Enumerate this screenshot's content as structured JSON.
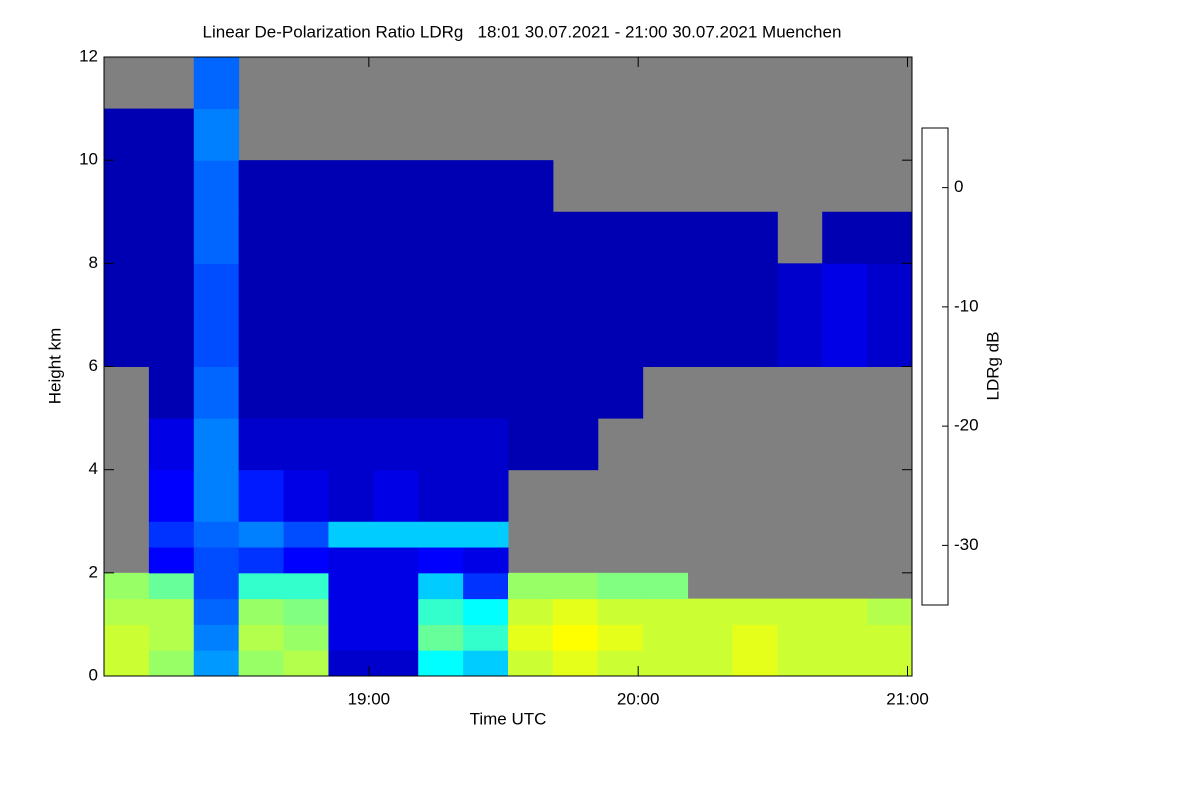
{
  "chart_data": {
    "type": "heatmap",
    "title": "Linear De-Polarization Ratio LDRg   18:01 30.07.2021 - 21:00 30.07.2021 Muenchen",
    "x_label": "Time UTC",
    "y_label": "Height km",
    "colorbar_label": "LDRg dB",
    "colormap": "jet",
    "missing_color": "#808080",
    "xlim": [
      1081,
      1261
    ],
    "xticks": [
      {
        "value": 1140,
        "label": "19:00"
      },
      {
        "value": 1200,
        "label": "20:00"
      },
      {
        "value": 1260,
        "label": "21:00"
      }
    ],
    "ylim": [
      0,
      12
    ],
    "yticks": [
      0,
      2,
      4,
      6,
      8,
      10,
      12
    ],
    "zlim": [
      -35,
      5
    ],
    "zticks": [
      0,
      -10,
      -20,
      -30
    ],
    "x_bins": [
      1081,
      1091,
      1101,
      1111,
      1121,
      1131,
      1141,
      1151,
      1161,
      1171,
      1181,
      1191,
      1201,
      1211,
      1221,
      1231,
      1241,
      1251,
      1261
    ],
    "y_bins": [
      0,
      0.5,
      1,
      1.5,
      2,
      2.5,
      3,
      4,
      5,
      6,
      7,
      8,
      9,
      10,
      11,
      12
    ],
    "z": [
      [
        -12,
        -14,
        -24,
        -14,
        -13,
        -32,
        -32,
        -20,
        -22,
        -12,
        -11,
        -12,
        -12,
        -12,
        -11,
        -12,
        -12,
        -12
      ],
      [
        -12,
        -13,
        -25,
        -13,
        -14,
        -31,
        -31,
        -16,
        -18,
        -11,
        -10,
        -11,
        -12,
        -12,
        -11,
        -12,
        -12,
        -12
      ],
      [
        -13,
        -13,
        -26,
        -14,
        -15,
        -31,
        -31,
        -18,
        -20,
        -12,
        -11,
        -12,
        -12,
        -12,
        -12,
        -12,
        -12,
        -13
      ],
      [
        -14,
        -16,
        -27,
        -18,
        -18,
        -31,
        -31,
        -22,
        -28,
        -14,
        -14,
        -15,
        -15,
        null,
        null,
        null,
        null,
        null
      ],
      [
        null,
        -30,
        -27,
        -28,
        -30,
        -31,
        -31,
        -30,
        -31,
        null,
        null,
        null,
        null,
        null,
        null,
        null,
        null,
        null
      ],
      [
        null,
        -28,
        -26,
        -25,
        -27,
        -22,
        -22,
        -22,
        -22,
        null,
        null,
        null,
        null,
        null,
        null,
        null,
        null,
        null
      ],
      [
        null,
        -30,
        -25,
        -29,
        -31,
        -32,
        -31,
        -32,
        -32,
        null,
        null,
        null,
        null,
        null,
        null,
        null,
        null,
        null
      ],
      [
        null,
        -31,
        -25,
        -32,
        -32,
        -32,
        -32,
        -32,
        -32,
        -33,
        -33,
        null,
        null,
        null,
        null,
        null,
        null,
        null
      ],
      [
        null,
        -33,
        -26,
        -33,
        -33,
        -33,
        -33,
        -33,
        -33,
        -33,
        -33,
        -33,
        null,
        null,
        null,
        null,
        null,
        null
      ],
      [
        -33,
        -33,
        -27,
        -33,
        -33,
        -33,
        -33,
        -33,
        -33,
        -33,
        -33,
        -33,
        -33,
        -33,
        -33,
        -32,
        -31,
        -32
      ],
      [
        -33,
        -33,
        -27,
        -33,
        -33,
        -33,
        -33,
        -33,
        -33,
        -33,
        -33,
        -33,
        -33,
        -33,
        -33,
        -32,
        -31,
        -32
      ],
      [
        -33,
        -33,
        -26,
        -33,
        -33,
        -33,
        -33,
        -33,
        -33,
        -33,
        -33,
        -33,
        -33,
        -33,
        -33,
        null,
        -33,
        -33
      ],
      [
        -33,
        -33,
        -26,
        -33,
        -33,
        -33,
        -33,
        -33,
        -33,
        -33,
        null,
        null,
        null,
        null,
        null,
        null,
        null,
        null
      ],
      [
        -33,
        -33,
        -25,
        null,
        null,
        null,
        null,
        null,
        null,
        null,
        null,
        null,
        null,
        null,
        null,
        null,
        null,
        null
      ],
      [
        null,
        null,
        -26,
        null,
        null,
        null,
        null,
        null,
        null,
        null,
        null,
        null,
        null,
        null,
        null,
        null,
        null,
        null
      ]
    ]
  }
}
